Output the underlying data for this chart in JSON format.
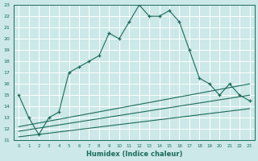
{
  "xlabel": "Humidex (Indice chaleur)",
  "bg_color": "#cce8e8",
  "line_color": "#1a6b5a",
  "grid_color": "#ffffff",
  "xlim": [
    -0.5,
    23.5
  ],
  "ylim": [
    11,
    23
  ],
  "xticks": [
    0,
    1,
    2,
    3,
    4,
    5,
    6,
    7,
    8,
    9,
    10,
    11,
    12,
    13,
    14,
    15,
    16,
    17,
    18,
    19,
    20,
    21,
    22,
    23
  ],
  "yticks": [
    11,
    12,
    13,
    14,
    15,
    16,
    17,
    18,
    19,
    20,
    21,
    22,
    23
  ],
  "main_x": [
    0,
    1,
    2,
    3,
    4,
    5,
    6,
    7,
    8,
    9,
    10,
    11,
    12,
    13,
    14,
    15,
    16,
    17,
    18,
    19,
    20,
    21,
    22,
    23
  ],
  "main_y": [
    15.0,
    13.0,
    11.5,
    13.0,
    13.5,
    17.0,
    17.5,
    18.0,
    18.5,
    20.5,
    20.0,
    21.5,
    23.0,
    22.0,
    22.0,
    22.5,
    21.5,
    19.0,
    16.5,
    16.0,
    15.0,
    16.0,
    15.0,
    14.5
  ],
  "line2_x": [
    0,
    23
  ],
  "line2_y": [
    12.2,
    16.0
  ],
  "line3_x": [
    0,
    23
  ],
  "line3_y": [
    11.8,
    15.0
  ],
  "line4_x": [
    0,
    23
  ],
  "line4_y": [
    11.3,
    13.8
  ]
}
